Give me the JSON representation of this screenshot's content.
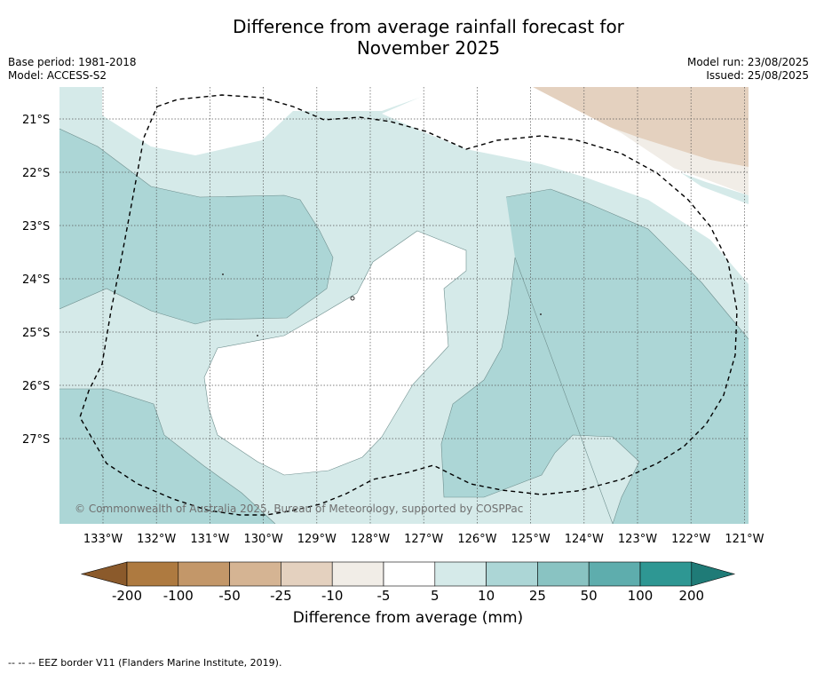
{
  "title_line1": "Difference from average rainfall forecast for",
  "title_line2": "November 2025",
  "meta_left": {
    "base_period": "Base period: 1981-2018",
    "model": "Model: ACCESS-S2"
  },
  "meta_right": {
    "model_run": "Model run: 23/08/2025",
    "issued": "Issued: 25/08/2025"
  },
  "lat_labels": [
    "21°S",
    "22°S",
    "23°S",
    "24°S",
    "25°S",
    "26°S",
    "27°S"
  ],
  "lon_labels": [
    "133°W",
    "132°W",
    "131°W",
    "130°W",
    "129°W",
    "128°W",
    "127°W",
    "126°W",
    "125°W",
    "124°W",
    "123°W",
    "122°W",
    "121°W"
  ],
  "copyright": "© Commonwealth of Australia 2025, Bureau of Meteorology, supported by COSPPac",
  "colorbar": {
    "ticks": [
      "-200",
      "-100",
      "-50",
      "-25",
      "-10",
      "-5",
      "5",
      "10",
      "25",
      "50",
      "100",
      "200"
    ],
    "colors": [
      "#8b5a2b",
      "#ae7a40",
      "#c39769",
      "#d5b493",
      "#e4d1bf",
      "#f1ede7",
      "#ffffff",
      "#d5eae9",
      "#acd6d6",
      "#89c3c2",
      "#5eadad",
      "#2e9793",
      "#1f7b77"
    ],
    "label": "Difference from average (mm)"
  },
  "legend_note": "-- -- -- EEZ border V11 (Flanders Marine Institute, 2019).",
  "colors": {
    "light_teal": "#d5eae9",
    "mid_teal": "#acd6d6",
    "neutral": "#f1ede7",
    "light_brown": "#e4d1bf"
  }
}
